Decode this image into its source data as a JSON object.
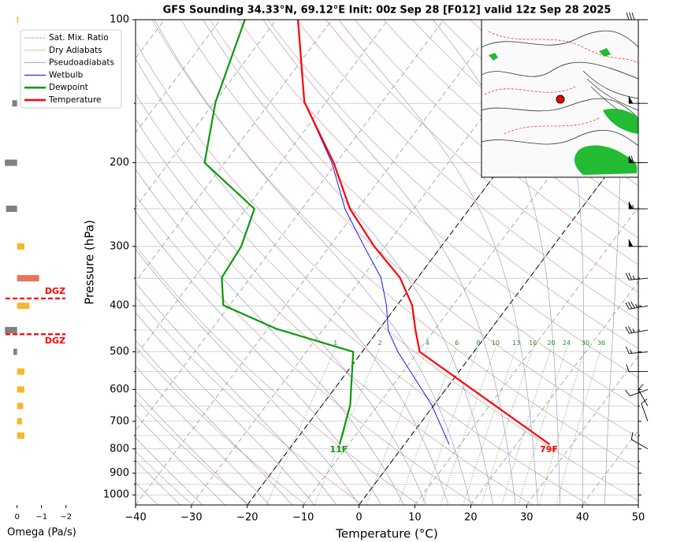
{
  "chart_data": {
    "type": "skewt",
    "title": "GFS Sounding 34.33°N, 69.12°E Init: 00z Sep 28 [F012] valid 12z Sep 28 2025",
    "xlabel": "Temperature (°C)",
    "ylabel": "Pressure (hPa)",
    "xlim": [
      -40,
      50
    ],
    "xticks": [
      {
        "value": -40,
        "label": "−40"
      },
      {
        "value": -30,
        "label": "−30"
      },
      {
        "value": -20,
        "label": "−20"
      },
      {
        "value": -10,
        "label": "−10"
      },
      0,
      10,
      20,
      30,
      40,
      50
    ],
    "ylim": [
      1050,
      100
    ],
    "log_y": true,
    "yticks": [
      100,
      200,
      300,
      400,
      500,
      600,
      700,
      800,
      900,
      1000
    ],
    "yminorticks": [
      150,
      250,
      350,
      450,
      550,
      650,
      750,
      850,
      950
    ],
    "grid": true,
    "highlight_isotherms": [
      -20,
      0
    ],
    "mixing_ratio_labels": [
      1,
      2,
      4,
      6,
      8,
      10,
      13,
      16,
      20,
      24,
      30,
      36
    ],
    "background_lines": [
      {
        "name": "Sat. Mix. Ratio",
        "color": "#2e8b2e"
      },
      {
        "name": "Dry Adiabats",
        "color": "#d98c8c"
      },
      {
        "name": "Pseudoadiabats",
        "color": "#8c8cc8"
      }
    ],
    "series": [
      {
        "name": "Wetbulb",
        "color": "#0000ff",
        "pressure": [
          783,
          647,
          500,
          451,
          399,
          349,
          300,
          250,
          200,
          149,
          100
        ],
        "temperature": [
          8.0,
          -0.4,
          -13.6,
          -18.2,
          -21.9,
          -26.6,
          -33.8,
          -42.3,
          -50.8,
          -63.9,
          -76.1
        ]
      },
      {
        "name": "Dewpoint",
        "color": "#0a9a0a",
        "annotation": "11F",
        "pressure": [
          783,
          647,
          500,
          447,
          399,
          349,
          300,
          250,
          200,
          149,
          100
        ],
        "temperature": [
          -11.6,
          -15.0,
          -21.6,
          -38.5,
          -51.1,
          -55.1,
          -55.8,
          -58.5,
          -73.6,
          -79.8,
          -85.6
        ]
      },
      {
        "name": "Temperature",
        "color": "#ff0000",
        "annotation": "79F",
        "pressure": [
          783,
          500,
          451,
          399,
          349,
          300,
          250,
          200,
          149,
          100
        ],
        "temperature": [
          26.0,
          -9.7,
          -13.3,
          -17.3,
          -23.2,
          -32.0,
          -41.4,
          -50.5,
          -63.9,
          -76.1
        ]
      }
    ],
    "wind": {
      "pressure": [
        100,
        150,
        200,
        250,
        300,
        350,
        400,
        450,
        500,
        550,
        600,
        650,
        700,
        800
      ],
      "speed": [
        30,
        50,
        60,
        55,
        50,
        25,
        35,
        25,
        15,
        10,
        10,
        10,
        10,
        10
      ],
      "direction": [
        270,
        270,
        270,
        270,
        270,
        265,
        260,
        260,
        265,
        270,
        250,
        330,
        340,
        300
      ]
    },
    "omega": {
      "xlabel": "Omega (Pa/s)",
      "xlim": [
        0.7,
        -2.3
      ],
      "xticks": [
        0,
        {
          "value": -1,
          "label": "−1"
        },
        {
          "value": -2,
          "label": "−2"
        }
      ],
      "pressure": [
        100,
        150,
        200,
        250,
        300,
        350,
        400,
        450,
        500,
        550,
        600,
        650,
        700,
        750
      ],
      "values": [
        -0.05,
        0.2,
        0.5,
        0.45,
        -0.3,
        -0.9,
        -0.5,
        0.5,
        0.15,
        -0.3,
        -0.3,
        -0.25,
        -0.2,
        -0.3
      ],
      "colors": [
        "#f5b82e",
        "#808080",
        "#808080",
        "#808080",
        "#f5b82e",
        "#e8735a",
        "#f5b82e",
        "#808080",
        "#808080",
        "#f5b82e",
        "#f5b82e",
        "#f5b82e",
        "#f5b82e",
        "#f5b82e"
      ]
    },
    "dgz": {
      "label": "DGZ",
      "pressure": [
        386,
        459
      ],
      "color": "#ff0000"
    }
  }
}
